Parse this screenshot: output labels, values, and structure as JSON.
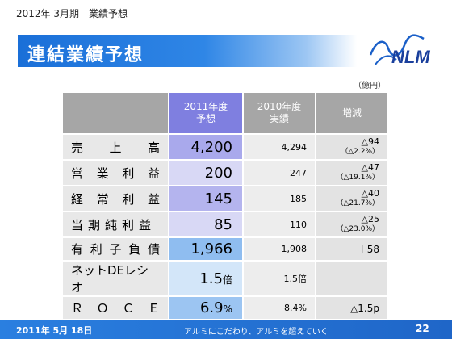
{
  "header": {
    "subtitle": "2012年 3月期　業績予想",
    "title": "連結業績予想",
    "logo_text": "NLM",
    "unit": "（億円）"
  },
  "table": {
    "headers": {
      "forecast_2011": [
        "2011年度",
        "予想"
      ],
      "actual_2010": [
        "2010年度",
        "実績"
      ],
      "change": "増減"
    },
    "rows": [
      {
        "label": [
          "売",
          "上",
          "高"
        ],
        "forecast": "4,200",
        "actual": "4,294",
        "change": "△94",
        "change_pct": "（△2.2%）"
      },
      {
        "label": [
          "営",
          "業",
          "利",
          "益"
        ],
        "forecast": "200",
        "actual": "247",
        "change": "△47",
        "change_pct": "（△19.1%）"
      },
      {
        "label": [
          "経",
          "常",
          "利",
          "益"
        ],
        "forecast": "145",
        "actual": "185",
        "change": "△40",
        "change_pct": "（△21.7%）"
      },
      {
        "label": [
          "当期純利益"
        ],
        "forecast": "85",
        "actual": "110",
        "change": "△25",
        "change_pct": "（△23.0%）"
      },
      {
        "label": [
          "有",
          "利",
          "子",
          "負",
          "債"
        ],
        "forecast": "1,966",
        "actual": "1,908",
        "change": "＋58",
        "change_pct": ""
      },
      {
        "label": [
          "ネットDEレシオ"
        ],
        "forecast": "1.5",
        "forecast_unit": "倍",
        "actual": "1.5倍",
        "change": "－",
        "change_pct": ""
      },
      {
        "label": [
          "Ｒ",
          "Ｏ",
          "Ｃ",
          "Ｅ"
        ],
        "forecast": "6.9",
        "forecast_unit": "%",
        "actual": "8.4%",
        "change": "△1.5p",
        "change_pct": ""
      }
    ]
  },
  "footer": {
    "date": "2011年 5月 18日",
    "slogan": "アルミにこだわり、アルミを超えていく",
    "page": "22"
  }
}
